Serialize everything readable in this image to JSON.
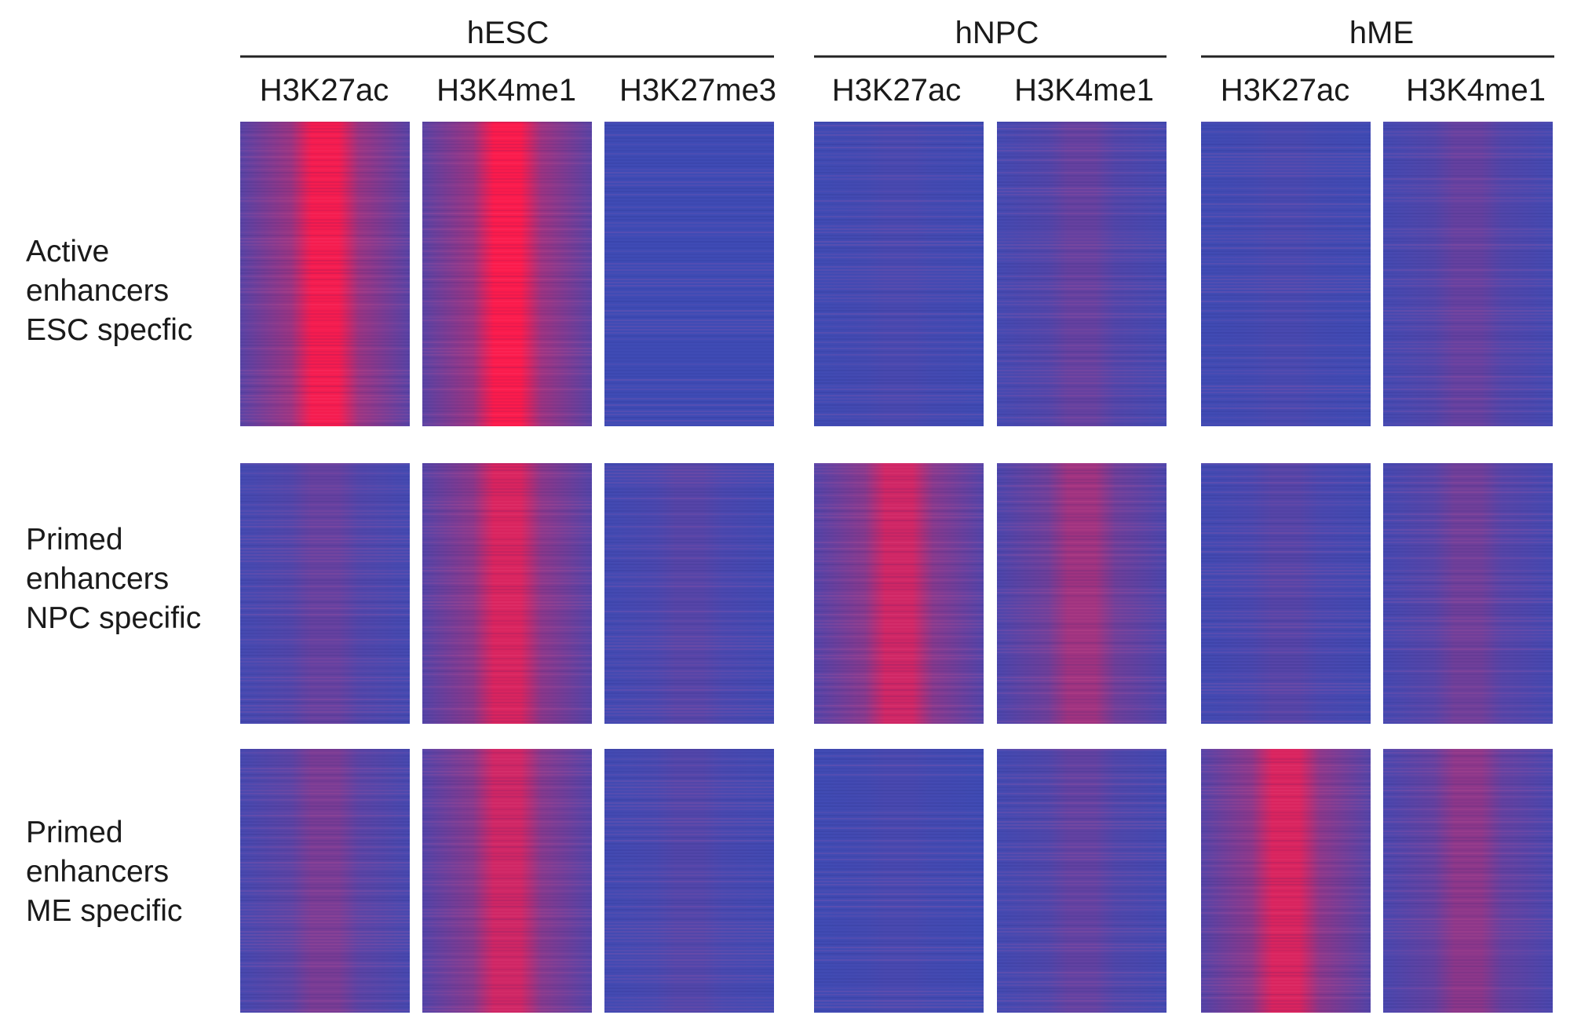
{
  "chart_data": {
    "type": "heatmap",
    "groups": [
      {
        "name": "hESC",
        "columns": [
          "H3K27ac",
          "H3K4me1",
          "H3K27me3"
        ]
      },
      {
        "name": "hNPC",
        "columns": [
          "H3K27ac",
          "H3K4me1"
        ]
      },
      {
        "name": "hME",
        "columns": [
          "H3K27ac",
          "H3K4me1"
        ]
      }
    ],
    "rows": [
      {
        "lines": [
          "Active",
          "enhancers",
          "ESC specfic"
        ]
      },
      {
        "lines": [
          "Primed",
          "enhancers",
          "NPC specific"
        ]
      },
      {
        "lines": [
          "Primed",
          "enhancers",
          "ME specific"
        ]
      }
    ],
    "intensity": [
      [
        0.95,
        0.98,
        0.0,
        0.05,
        0.2,
        0.05,
        0.2
      ],
      [
        0.2,
        0.8,
        0.12,
        0.75,
        0.5,
        0.12,
        0.25
      ],
      [
        0.3,
        0.75,
        0.1,
        0.05,
        0.18,
        0.8,
        0.4
      ]
    ],
    "colors": {
      "low": "#3f4bb5",
      "high": "#ff1a4a"
    }
  }
}
